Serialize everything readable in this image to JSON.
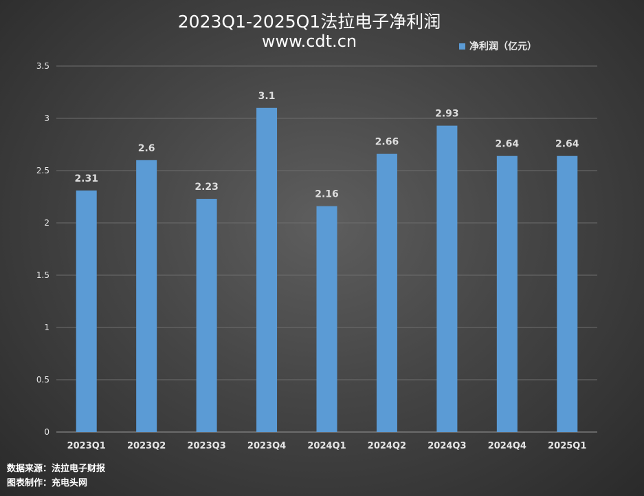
{
  "chart_data": {
    "type": "bar",
    "title": "2023Q1-2025Q1法拉电子净利润",
    "subtitle": "www.cdt.cn",
    "categories": [
      "2023Q1",
      "2023Q2",
      "2023Q3",
      "2023Q4",
      "2024Q1",
      "2024Q2",
      "2024Q3",
      "2024Q4",
      "2025Q1"
    ],
    "series": [
      {
        "name": "净利润（亿元）",
        "values": [
          2.31,
          2.6,
          2.23,
          3.1,
          2.16,
          2.66,
          2.93,
          2.64,
          2.64
        ]
      }
    ],
    "data_labels": [
      "2.31",
      "2.6",
      "2.23",
      "3.1",
      "2.16",
      "2.66",
      "2.93",
      "2.64",
      "2.64"
    ],
    "ylim": [
      0,
      3.5
    ],
    "yticks": [
      0,
      0.5,
      1,
      1.5,
      2,
      2.5,
      3,
      3.5
    ],
    "ytick_labels": [
      "0",
      "0.5",
      "1",
      "1.5",
      "2",
      "2.5",
      "3",
      "3.5"
    ],
    "grid": true,
    "legend_position": "top-right",
    "bar_color": "#5b9bd5"
  },
  "footer": {
    "source": "数据来源：法拉电子财报",
    "maker": "图表制作：充电头网"
  }
}
